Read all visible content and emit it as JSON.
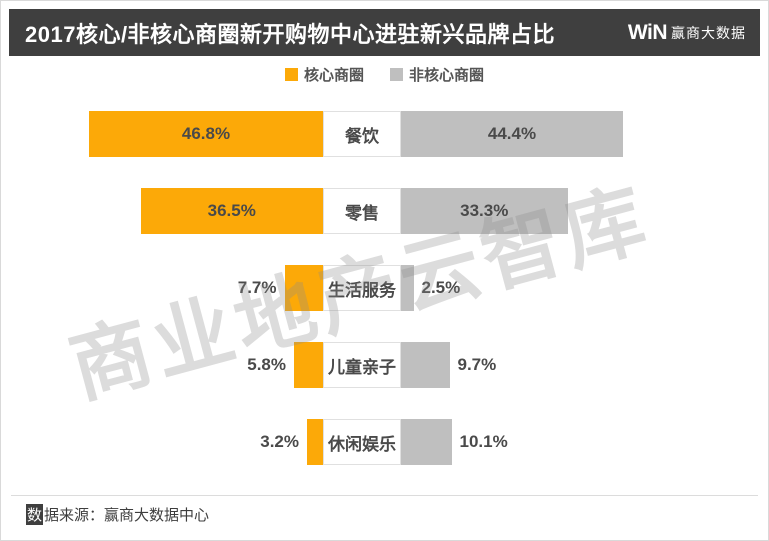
{
  "header": {
    "title": "2017核心/非核心商圈新开购物中心进驻新兴品牌占比",
    "logo": {
      "mark": "WiN",
      "brand": "赢商大数据"
    }
  },
  "legend": [
    {
      "label": "核心商圈",
      "color": "#FCA908"
    },
    {
      "label": "非核心商圈",
      "color": "#BFBFBF"
    }
  ],
  "chart_data": {
    "type": "bar",
    "subtype": "diverging-horizontal",
    "title": "2017核心/非核心商圈新开购物中心进驻新兴品牌占比",
    "categories": [
      "餐饮",
      "零售",
      "生活服务",
      "儿童亲子",
      "休闲娱乐"
    ],
    "series": [
      {
        "name": "核心商圈",
        "color": "#FCA908",
        "values": [
          46.8,
          36.5,
          7.7,
          5.8,
          3.2
        ]
      },
      {
        "name": "非核心商圈",
        "color": "#BFBFBF",
        "values": [
          44.4,
          33.3,
          2.5,
          9.7,
          10.1
        ]
      }
    ],
    "value_format": "percent",
    "value_suffix": "%",
    "axis_hidden": true,
    "legend_position": "top-center",
    "grid": false
  },
  "watermark": "商业地产云智库",
  "footer": {
    "source_highlight_char": "数",
    "source_text": "据来源：赢商大数据中心"
  },
  "colors": {
    "core": "#FCA908",
    "noncore": "#BFBFBF",
    "header_bg": "#3F3F3F",
    "text": "#4A4A4A"
  }
}
